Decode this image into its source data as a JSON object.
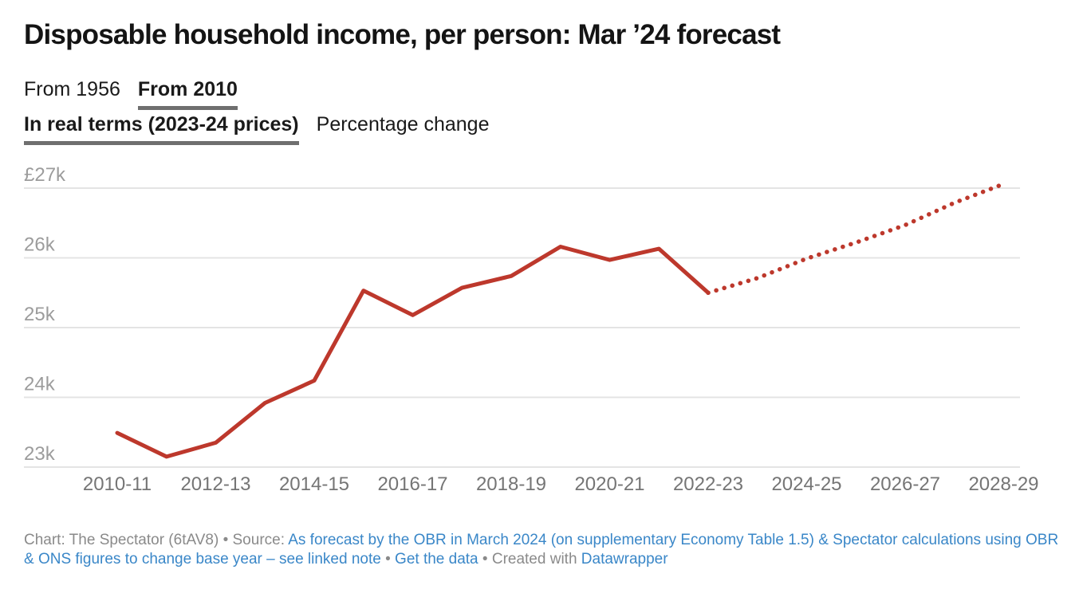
{
  "header": {
    "title": "Disposable household income, per person: Mar ’24 forecast",
    "range_tabs": [
      {
        "label": "From 1956",
        "active": false
      },
      {
        "label": "From 2010",
        "active": true
      }
    ],
    "unit_tabs": [
      {
        "label": "In real terms (2023-24 prices)",
        "active": true
      },
      {
        "label": "Percentage change",
        "active": false
      }
    ]
  },
  "chart_data": {
    "type": "line",
    "title": "Disposable household income, per person: Mar ’24 forecast",
    "x": [
      "2010-11",
      "2011-12",
      "2012-13",
      "2013-14",
      "2014-15",
      "2015-16",
      "2016-17",
      "2017-18",
      "2018-19",
      "2019-20",
      "2020-21",
      "2021-22",
      "2022-23",
      "2023-24",
      "2024-25",
      "2025-26",
      "2026-27",
      "2027-28",
      "2028-29"
    ],
    "series": [
      {
        "name": "Disposable household income per person, £ (2023-24 prices)",
        "values": [
          23490,
          23150,
          23350,
          23920,
          24240,
          25530,
          25180,
          25570,
          25740,
          26160,
          25970,
          26130,
          25500,
          25710,
          25990,
          26220,
          26470,
          26790,
          27060
        ]
      }
    ],
    "forecast_start_index": 12,
    "forecast_style": "dotted",
    "solid_segment": "2010-11 to 2022-23 (actual)",
    "dotted_segment": "2022-23 to 2028-29 (forecast)",
    "x_tick_labels": [
      "2010-11",
      "2012-13",
      "2014-15",
      "2016-17",
      "2018-19",
      "2020-21",
      "2022-23",
      "2024-25",
      "2026-27",
      "2028-29"
    ],
    "y_tick_labels": [
      "£27k",
      "26k",
      "25k",
      "24k",
      "23k"
    ],
    "y_tick_values": [
      27000,
      26000,
      25000,
      24000,
      23000
    ],
    "ylim": [
      22850,
      27250
    ],
    "grid": "horizontal",
    "legend": "none",
    "line_color": "#bd382c"
  },
  "colors": {
    "line": "#bd382c",
    "link": "#3a87c8",
    "footer_text": "#8a8a8a",
    "y_axis_text": "#9c9c9c",
    "x_axis_text": "#757575",
    "gridline": "#e4e4e4",
    "tab_underline": "#6f6f6f",
    "title_text": "#141414"
  },
  "footer": {
    "credit": "Chart: The Spectator (6tAV8) • Source: ",
    "source_link": "As forecast by the OBR in March 2024 (on supplementary Economy Table 1.5) & Spectator calculations using OBR & ONS figures to change base year – see linked note",
    "sep1": " • ",
    "get_data_link": "Get the data",
    "sep2": " • ",
    "created_with": "Created with ",
    "datawrapper_link": "Datawrapper"
  }
}
